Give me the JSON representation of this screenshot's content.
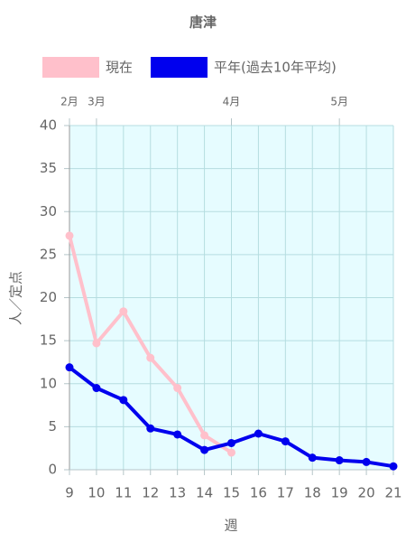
{
  "chart_data": {
    "type": "line",
    "title": "唐津",
    "x": [
      9,
      10,
      11,
      12,
      13,
      14,
      15,
      16,
      17,
      18,
      19,
      20,
      21
    ],
    "series": [
      {
        "name": "現在",
        "color": "#ffc0cb",
        "values": [
          27.2,
          14.7,
          18.4,
          13.0,
          9.5,
          4.0,
          2.0,
          null,
          null,
          null,
          null,
          null,
          null
        ]
      },
      {
        "name": "平年(過去10年平均)",
        "color": "#0000ee",
        "values": [
          11.9,
          9.5,
          8.1,
          4.8,
          4.1,
          2.3,
          3.1,
          4.2,
          3.3,
          1.4,
          1.1,
          0.9,
          0.4
        ]
      }
    ],
    "xlim": [
      9,
      21
    ],
    "xticks": [
      9,
      10,
      11,
      12,
      13,
      14,
      15,
      16,
      17,
      18,
      19,
      20,
      21
    ],
    "ylim": [
      0,
      40
    ],
    "yticks": [
      0,
      5,
      10,
      15,
      20,
      25,
      30,
      35,
      40
    ],
    "month_labels": [
      {
        "value": 9,
        "label": "2月"
      },
      {
        "value": 10,
        "label": "3月"
      },
      {
        "value": 15,
        "label": "4月"
      },
      {
        "value": 19,
        "label": "5月"
      }
    ],
    "xlabel": "週",
    "ylabel": "人／定点",
    "grid": true
  }
}
